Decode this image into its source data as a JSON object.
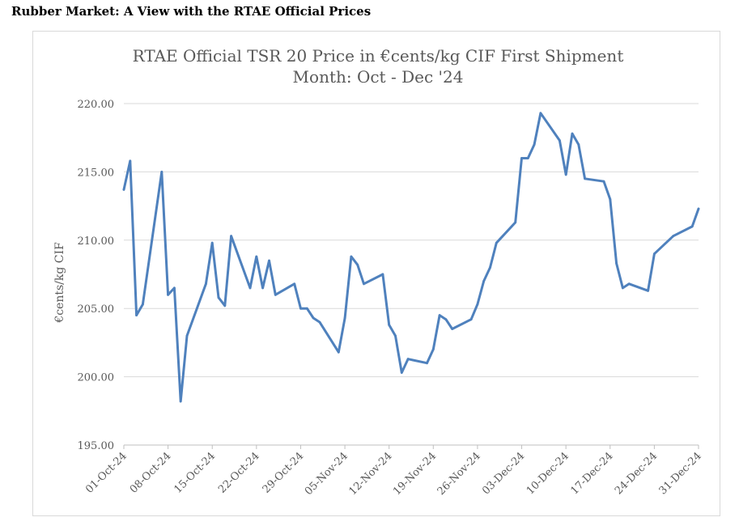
{
  "page": {
    "heading": "Rubber Market: A View with the RTAE Official Prices"
  },
  "chart_data": {
    "type": "line",
    "title_line1": "RTAE Official TSR 20 Price in €cents/kg CIF First Shipment",
    "title_line2": "Month: Oct - Dec '24",
    "ylabel": "€cents/kg CIF",
    "ylim": [
      195,
      220
    ],
    "yticks": [
      195,
      200,
      205,
      210,
      215,
      220
    ],
    "ytick_labels": [
      "195.00",
      "200.00",
      "205.00",
      "210.00",
      "215.00",
      "220.00"
    ],
    "xlim": [
      "2024-10-01",
      "2024-12-31"
    ],
    "xticks": [
      "2024-10-01",
      "2024-10-08",
      "2024-10-15",
      "2024-10-22",
      "2024-10-29",
      "2024-11-05",
      "2024-11-12",
      "2024-11-19",
      "2024-11-26",
      "2024-12-03",
      "2024-12-10",
      "2024-12-17",
      "2024-12-24",
      "2024-12-31"
    ],
    "xtick_labels": [
      "01-Oct-24",
      "08-Oct-24",
      "15-Oct-24",
      "22-Oct-24",
      "29-Oct-24",
      "05-Nov-24",
      "12-Nov-24",
      "19-Nov-24",
      "26-Nov-24",
      "03-Dec-24",
      "10-Dec-24",
      "17-Dec-24",
      "24-Dec-24",
      "31-Dec-24"
    ],
    "grid": true,
    "line_color": "#4f81bd",
    "series": [
      {
        "x": [
          "2024-10-01",
          "2024-10-02",
          "2024-10-03",
          "2024-10-04",
          "2024-10-07",
          "2024-10-08",
          "2024-10-09",
          "2024-10-10",
          "2024-10-11",
          "2024-10-14",
          "2024-10-15",
          "2024-10-16",
          "2024-10-17",
          "2024-10-18",
          "2024-10-21",
          "2024-10-22",
          "2024-10-23",
          "2024-10-24",
          "2024-10-25",
          "2024-10-28",
          "2024-10-29",
          "2024-10-30",
          "2024-10-31",
          "2024-11-01",
          "2024-11-04",
          "2024-11-05",
          "2024-11-06",
          "2024-11-07",
          "2024-11-08",
          "2024-11-11",
          "2024-11-12",
          "2024-11-13",
          "2024-11-14",
          "2024-11-15",
          "2024-11-18",
          "2024-11-19",
          "2024-11-20",
          "2024-11-21",
          "2024-11-22",
          "2024-11-25",
          "2024-11-26",
          "2024-11-27",
          "2024-11-28",
          "2024-11-29",
          "2024-12-02",
          "2024-12-03",
          "2024-12-04",
          "2024-12-05",
          "2024-12-06",
          "2024-12-09",
          "2024-12-10",
          "2024-12-11",
          "2024-12-12",
          "2024-12-13",
          "2024-12-16",
          "2024-12-17",
          "2024-12-18",
          "2024-12-19",
          "2024-12-20",
          "2024-12-23",
          "2024-12-24",
          "2024-12-27",
          "2024-12-30",
          "2024-12-31"
        ],
        "values": [
          213.7,
          215.8,
          204.5,
          205.3,
          215.0,
          206.0,
          206.5,
          198.2,
          203.0,
          206.8,
          209.8,
          205.8,
          205.2,
          210.3,
          206.5,
          208.8,
          206.5,
          208.5,
          206.0,
          206.8,
          205.0,
          205.0,
          204.3,
          204.0,
          201.8,
          204.3,
          208.8,
          208.2,
          206.8,
          207.5,
          203.8,
          203.0,
          200.3,
          201.3,
          201.0,
          202.0,
          204.5,
          204.2,
          203.5,
          204.2,
          205.3,
          207.0,
          208.0,
          209.8,
          211.3,
          216.0,
          216.0,
          217.0,
          219.3,
          217.3,
          214.8,
          217.8,
          217.0,
          214.5,
          214.3,
          213.0,
          208.3,
          206.5,
          206.8,
          206.3,
          209.0,
          210.3,
          211.0,
          212.3
        ]
      }
    ]
  }
}
